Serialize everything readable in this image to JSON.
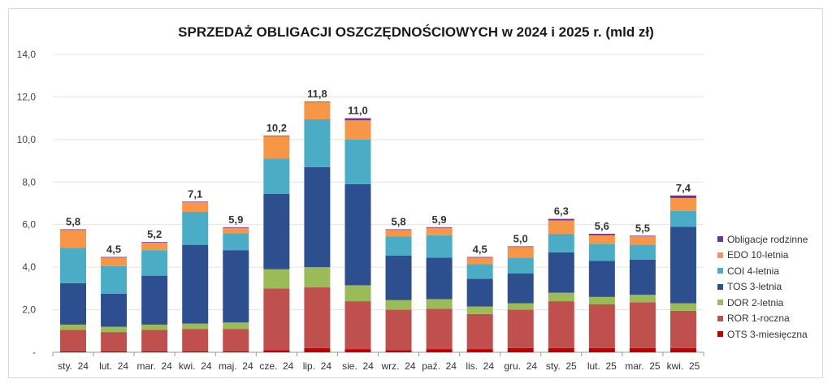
{
  "chart_data": {
    "type": "bar",
    "stacked": true,
    "title": "SPRZEDAŻ OBLIGACJI OSZCZĘDNOŚCIOWYCH w 2024 i 2025 r. (mld zł)",
    "xlabel": "",
    "ylabel": "",
    "ylim": [
      0,
      14
    ],
    "yticks": [
      "-",
      "2,0",
      "4,0",
      "6,0",
      "8,0",
      "10,0",
      "12,0",
      "14,0"
    ],
    "grid": true,
    "legend_position": "right",
    "categories": [
      "sty.  24",
      "lut.  24",
      "mar.  24",
      "kwi.  24",
      "maj.  24",
      "cze.  24",
      "lip.  24",
      "sie.  24",
      "wrz.  24",
      "paź.  24",
      "lis.  24",
      "gru.  24",
      "sty.  25",
      "lut.  25",
      "mar.  25",
      "kwi.  25"
    ],
    "totals": [
      "5,8",
      "4,5",
      "5,2",
      "7,1",
      "5,9",
      "10,2",
      "11,8",
      "11,0",
      "5,8",
      "5,9",
      "4,5",
      "5,0",
      "6,3",
      "5,6",
      "5,5",
      "7,4"
    ],
    "series": [
      {
        "name": "OTS 3-miesięczna",
        "color": "#c00000",
        "values": [
          0.05,
          0.05,
          0.05,
          0.05,
          0.05,
          0.1,
          0.2,
          0.15,
          0.1,
          0.15,
          0.15,
          0.2,
          0.2,
          0.2,
          0.2,
          0.2
        ]
      },
      {
        "name": "ROR 1-roczna",
        "color": "#c0504d",
        "values": [
          1.0,
          0.9,
          1.0,
          1.05,
          1.05,
          2.9,
          2.85,
          2.25,
          1.9,
          1.9,
          1.65,
          1.8,
          2.2,
          2.05,
          2.15,
          1.75
        ]
      },
      {
        "name": "DOR 2-letnia",
        "color": "#9bbb59",
        "values": [
          0.25,
          0.25,
          0.25,
          0.25,
          0.3,
          0.9,
          0.95,
          0.75,
          0.45,
          0.45,
          0.35,
          0.3,
          0.4,
          0.35,
          0.35,
          0.35
        ]
      },
      {
        "name": "TOS 3-letnia",
        "color": "#2e4f8f",
        "values": [
          1.95,
          1.55,
          2.3,
          3.7,
          3.4,
          3.55,
          4.7,
          4.75,
          2.1,
          1.95,
          1.3,
          1.4,
          1.9,
          1.7,
          1.65,
          3.6
        ]
      },
      {
        "name": "COI 4-letnia",
        "color": "#4bacc6",
        "values": [
          1.65,
          1.3,
          1.2,
          1.55,
          0.8,
          1.65,
          2.25,
          2.1,
          0.9,
          1.05,
          0.7,
          0.75,
          0.85,
          0.8,
          0.7,
          0.75
        ]
      },
      {
        "name": "EDO 10-letnia",
        "color": "#f79646",
        "values": [
          0.85,
          0.4,
          0.35,
          0.45,
          0.25,
          1.05,
          0.8,
          0.9,
          0.3,
          0.35,
          0.3,
          0.5,
          0.65,
          0.4,
          0.4,
          0.6
        ]
      },
      {
        "name": "Obligacje rodzinne",
        "color": "#7030a0",
        "values": [
          0.03,
          0.03,
          0.03,
          0.03,
          0.03,
          0.03,
          0.03,
          0.1,
          0.03,
          0.03,
          0.03,
          0.03,
          0.07,
          0.07,
          0.03,
          0.12
        ]
      }
    ],
    "legend_order": [
      "Obligacje rodzinne",
      "EDO 10-letnia",
      "COI 4-letnia",
      "TOS 3-letnia",
      "DOR 2-letnia",
      "ROR 1-roczna",
      "OTS 3-miesięczna"
    ]
  }
}
